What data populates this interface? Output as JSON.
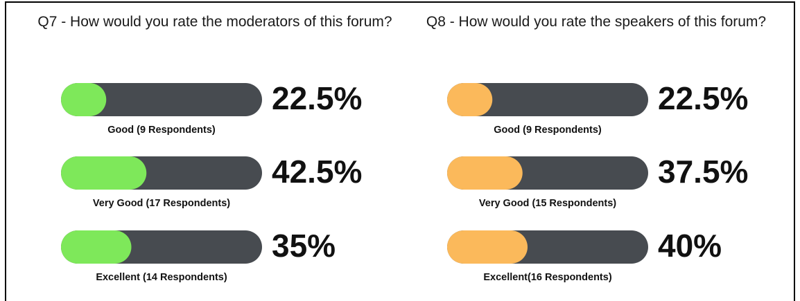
{
  "chart_data": [
    {
      "type": "bar",
      "title": "Q7 - How would you rate the moderators of this forum?",
      "categories": [
        "Good (9 Respondents)",
        "Very Good (17 Respondents)",
        "Excellent (14 Respondents)"
      ],
      "values": [
        22.5,
        42.5,
        35
      ],
      "value_labels": [
        "22.5%",
        "42.5%",
        "35%"
      ],
      "color": "#7ee85a",
      "xlim": [
        0,
        100
      ]
    },
    {
      "type": "bar",
      "title": "Q8 - How would you rate the speakers of this forum?",
      "categories": [
        "Good (9 Respondents)",
        "Very Good (15 Respondents)",
        "Excellent(16 Respondents)"
      ],
      "values": [
        22.5,
        37.5,
        40
      ],
      "value_labels": [
        "22.5%",
        "37.5%",
        "40%"
      ],
      "color": "#fbb95b",
      "xlim": [
        0,
        100
      ]
    }
  ]
}
